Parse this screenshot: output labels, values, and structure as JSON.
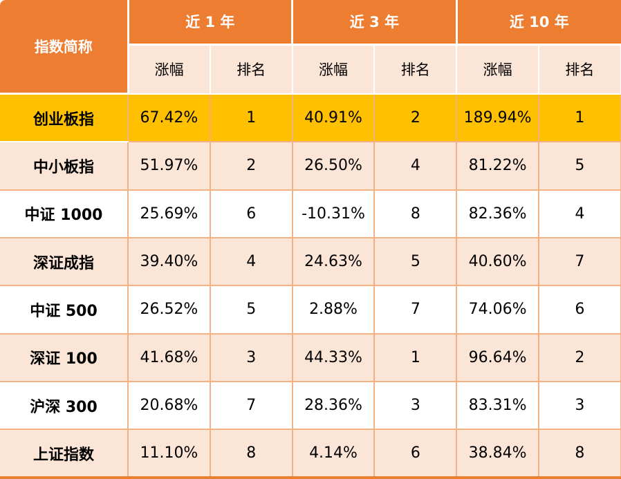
{
  "chart_data": {
    "type": "table",
    "corner_header": "指数简称",
    "column_groups": [
      "近 1 年",
      "近 3 年",
      "近 10 年"
    ],
    "sub_columns": [
      "涨幅",
      "排名"
    ],
    "rows": [
      {
        "name": "创业板指",
        "y1_change": "67.42%",
        "y1_rank": "1",
        "y3_change": "40.91%",
        "y3_rank": "2",
        "y10_change": "189.94%",
        "y10_rank": "1",
        "highlighted": true
      },
      {
        "name": "中小板指",
        "y1_change": "51.97%",
        "y1_rank": "2",
        "y3_change": "26.50%",
        "y3_rank": "4",
        "y10_change": "81.22%",
        "y10_rank": "5",
        "highlighted": false
      },
      {
        "name": "中证 1000",
        "y1_change": "25.69%",
        "y1_rank": "6",
        "y3_change": "-10.31%",
        "y3_rank": "8",
        "y10_change": "82.36%",
        "y10_rank": "4",
        "highlighted": false
      },
      {
        "name": "深证成指",
        "y1_change": "39.40%",
        "y1_rank": "4",
        "y3_change": "24.63%",
        "y3_rank": "5",
        "y10_change": "40.60%",
        "y10_rank": "7",
        "highlighted": false
      },
      {
        "name": "中证 500",
        "y1_change": "26.52%",
        "y1_rank": "5",
        "y3_change": "2.88%",
        "y3_rank": "7",
        "y10_change": "74.06%",
        "y10_rank": "6",
        "highlighted": false
      },
      {
        "name": "深证 100",
        "y1_change": "41.68%",
        "y1_rank": "3",
        "y3_change": "44.33%",
        "y3_rank": "1",
        "y10_change": "96.64%",
        "y10_rank": "2",
        "highlighted": false
      },
      {
        "name": "沪深 300",
        "y1_change": "20.68%",
        "y1_rank": "7",
        "y3_change": "28.36%",
        "y3_rank": "3",
        "y10_change": "83.31%",
        "y10_rank": "3",
        "highlighted": false
      },
      {
        "name": "上证指数",
        "y1_change": "11.10%",
        "y1_rank": "8",
        "y3_change": "4.14%",
        "y3_rank": "6",
        "y10_change": "38.84%",
        "y10_rank": "8",
        "highlighted": false
      }
    ]
  },
  "colors": {
    "header_orange": "#ED7D31",
    "highlight_gold": "#FFC000",
    "row_peach": "#FBE5D6",
    "row_white": "#FFFFFF",
    "border_light_orange": "#F4B183",
    "header_text": "#FFFFFF",
    "body_text": "#000000"
  }
}
